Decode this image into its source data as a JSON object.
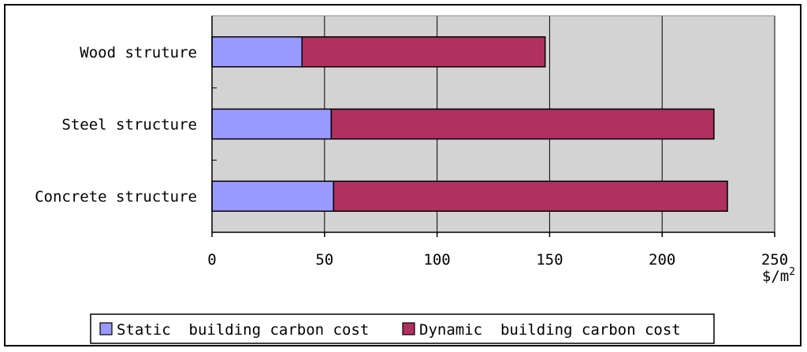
{
  "chart_data": {
    "type": "bar",
    "orientation": "horizontal",
    "stacked": true,
    "categories": [
      "Wood struture",
      "Steel structure",
      "Concrete structure"
    ],
    "series": [
      {
        "name": "Static  building carbon cost",
        "values": [
          40,
          53,
          54
        ],
        "color": "#9999ff"
      },
      {
        "name": "Dynamic  building carbon cost",
        "values": [
          108,
          170,
          175
        ],
        "color": "#b03060"
      }
    ],
    "xlim": [
      0,
      250
    ],
    "xticks": [
      "0",
      "50",
      "100",
      "150",
      "200",
      "250"
    ],
    "xunit": "$/m",
    "xunit_sup": "2",
    "grid": true,
    "legend_position": "bottom"
  }
}
